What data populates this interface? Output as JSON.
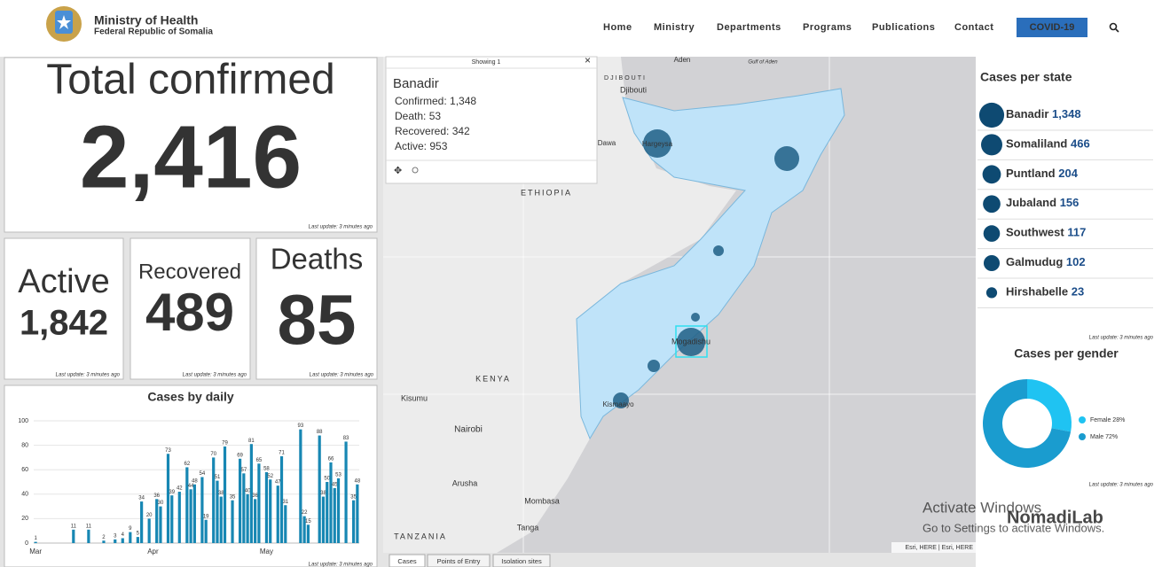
{
  "header": {
    "logo_title": "Ministry of Health",
    "logo_subtitle": "Federal Republic of Somalia",
    "nav": [
      "Home",
      "Ministry",
      "Departments",
      "Programs",
      "Publications",
      "Contact"
    ],
    "covid_button": "COVID-19"
  },
  "kpis": [
    {
      "label": "Total confirmed",
      "value": "2,416",
      "update": "Last update: 3 minutes ago"
    },
    {
      "label": "Active",
      "value": "1,842",
      "update": "Last update: 3 minutes ago"
    },
    {
      "label": "Recovered",
      "value": "489",
      "update": "Last update: 3 minutes ago"
    },
    {
      "label": "Deaths",
      "value": "85",
      "update": "Last update: 3 minutes ago"
    }
  ],
  "daily_chart": {
    "type": "bar",
    "title": "Cases by daily",
    "categories": [
      "Mar",
      null,
      null,
      null,
      null,
      null,
      null,
      null,
      null,
      null,
      null,
      null,
      null,
      null,
      null,
      null,
      null,
      null,
      null,
      null,
      null,
      null,
      null,
      null,
      null,
      null,
      null,
      null,
      null,
      null,
      null,
      "Apr",
      null,
      null,
      null,
      null,
      null,
      null,
      null,
      null,
      null,
      null,
      null,
      null,
      null,
      null,
      null,
      null,
      null,
      null,
      null,
      null,
      null,
      null,
      null,
      null,
      null,
      null,
      null,
      null,
      null,
      "May",
      null,
      null,
      null,
      null,
      null,
      null,
      null,
      null,
      null,
      null,
      null,
      null,
      null,
      null,
      null,
      null,
      null,
      null,
      null,
      null,
      null,
      null,
      null,
      null
    ],
    "values": [
      1,
      0,
      0,
      0,
      0,
      0,
      0,
      0,
      0,
      0,
      11,
      0,
      0,
      0,
      11,
      0,
      0,
      0,
      2,
      0,
      0,
      3,
      0,
      4,
      0,
      9,
      0,
      5,
      34,
      0,
      20,
      0,
      36,
      30,
      0,
      73,
      39,
      0,
      42,
      0,
      62,
      44,
      48,
      0,
      54,
      19,
      0,
      70,
      51,
      38,
      79,
      0,
      35,
      0,
      69,
      57,
      40,
      81,
      36,
      65,
      0,
      58,
      52,
      0,
      47,
      71,
      31,
      0,
      0,
      0,
      93,
      22,
      15,
      0,
      0,
      88,
      38,
      50,
      66,
      45,
      53,
      0,
      83,
      0,
      35,
      48
    ],
    "color": "#1787b3",
    "ylim": [
      0,
      100
    ],
    "yticks": [
      0,
      20,
      40,
      60,
      80,
      100
    ],
    "grid": true,
    "update": "Last update: 3 minutes ago"
  },
  "map": {
    "popup": {
      "showing": "Showing 1",
      "title": "Banadir",
      "rows": [
        "Confirmed: 1,348",
        "Death: 53",
        "Recovered: 342",
        "Active: 953"
      ]
    },
    "labels": [
      "Aden",
      "Gulf of Aden",
      "DJIBOUTI",
      "Djibouti",
      "Dawa",
      "Hargeysa",
      "ETHIOPIA",
      "KENYA",
      "Kisumu",
      "Nairobi",
      "Arusha",
      "Mombasa",
      "Tanga",
      "TANZANIA",
      "Mogadishu",
      "Kismaayo"
    ],
    "attribution": "Esri, HERE | Esri, HERE",
    "tabs": [
      "Cases",
      "Points of Entry",
      "Isolation sites"
    ]
  },
  "states": {
    "title": "Cases per state",
    "rows": [
      {
        "name": "Banadir",
        "value": 1348,
        "label": "1,348"
      },
      {
        "name": "Somaliland",
        "value": 466,
        "label": "466"
      },
      {
        "name": "Puntland",
        "value": 204,
        "label": "204"
      },
      {
        "name": "Jubaland",
        "value": 156,
        "label": "156"
      },
      {
        "name": "Southwest",
        "value": 117,
        "label": "117"
      },
      {
        "name": "Galmudug",
        "value": 102,
        "label": "102"
      },
      {
        "name": "Hirshabelle",
        "value": 23,
        "label": "23"
      }
    ],
    "color": "#0e4a72",
    "update": "Last update: 3 minutes ago"
  },
  "gender": {
    "type": "pie",
    "title": "Cases per gender",
    "series": [
      {
        "name": "Female",
        "value": 28,
        "label": "28%",
        "color": "#1fc3f2"
      },
      {
        "name": "Male",
        "value": 72,
        "label": "72%",
        "color": "#1a9ccf"
      }
    ],
    "update": "Last update: 3 minutes ago"
  },
  "watermark": {
    "line1": "Activate Windows",
    "line2": "Go to Settings to activate Windows.",
    "brand": "NomadiLab"
  }
}
